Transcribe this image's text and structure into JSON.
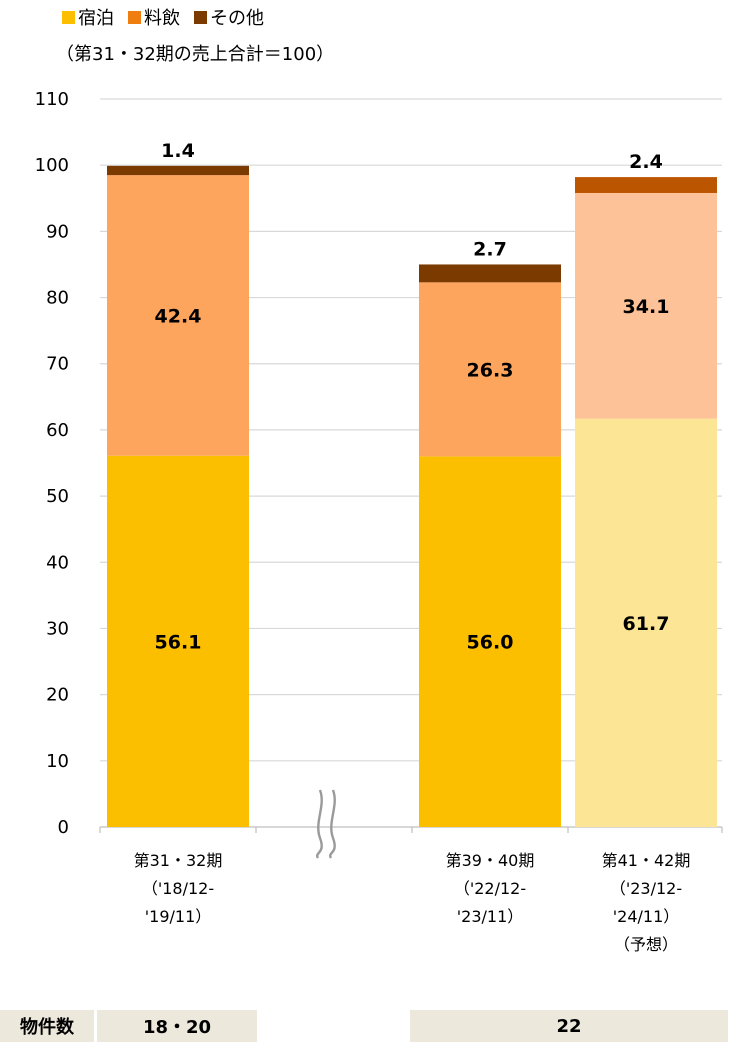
{
  "legend": {
    "items": [
      {
        "label": "宿泊",
        "color": "#fcbf00"
      },
      {
        "label": "料飲",
        "color": "#f07d10"
      },
      {
        "label": "その他",
        "color": "#7a3a00"
      }
    ]
  },
  "subtitle": "（第31・32期の売上合計＝100）",
  "chart_data": {
    "type": "bar",
    "stacked": true,
    "ylim": [
      0,
      110
    ],
    "yticks": [
      0,
      10,
      20,
      30,
      40,
      50,
      60,
      70,
      80,
      90,
      100,
      110
    ],
    "grid": true,
    "legend_position": "top-left",
    "axis_break": "between 第31・32期 and 第39・40期",
    "categories": [
      {
        "lines": [
          "第31・32期",
          "（'18/12-",
          "'19/11）"
        ]
      },
      {
        "lines": [
          "第39・40期",
          "（'22/12-",
          "'23/11）"
        ]
      },
      {
        "lines": [
          "第41・42期",
          "（'23/12-",
          "'24/11）",
          "（予想）"
        ]
      }
    ],
    "series": [
      {
        "name": "宿泊",
        "values": [
          56.1,
          56.0,
          61.7
        ],
        "labels": [
          "56.1",
          "56.0",
          "61.7"
        ],
        "colors": [
          "#fcbf00",
          "#fcbf00",
          "#fde596"
        ]
      },
      {
        "name": "料飲",
        "values": [
          42.4,
          26.3,
          34.1
        ],
        "labels": [
          "42.4",
          "26.3",
          "34.1"
        ],
        "colors": [
          "#fda45d",
          "#fda45d",
          "#fdc297"
        ]
      },
      {
        "name": "その他",
        "values": [
          1.4,
          2.7,
          2.4
        ],
        "labels": [
          "1.4",
          "2.7",
          "2.4"
        ],
        "colors": [
          "#7a3a00",
          "#7a3a00",
          "#bb5500"
        ]
      }
    ]
  },
  "property_count": {
    "label": "物件数",
    "values": [
      "18・20",
      "22"
    ]
  }
}
